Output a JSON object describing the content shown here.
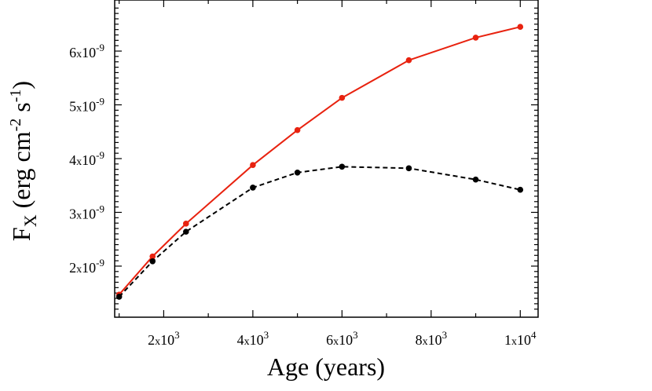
{
  "chart_data": {
    "type": "line",
    "xlabel": "Age (years)",
    "ylabel": {
      "main": "F",
      "sub": "X",
      "open": "(erg cm",
      "exp1": "-2",
      "mid": " s",
      "exp2": "-1",
      "close": ")"
    },
    "xlim": [
      900,
      10400
    ],
    "ylim": [
      1.05e-09,
      6.95e-09
    ],
    "x_ticks": [
      {
        "value": 2000,
        "mant": "2",
        "sep": "x",
        "base": "10",
        "exp": "3"
      },
      {
        "value": 4000,
        "mant": "4",
        "sep": "x",
        "base": "10",
        "exp": "3"
      },
      {
        "value": 6000,
        "mant": "6",
        "sep": "x",
        "base": "10",
        "exp": "3"
      },
      {
        "value": 8000,
        "mant": "8",
        "sep": "x",
        "base": "10",
        "exp": "3"
      },
      {
        "value": 10000,
        "mant": "1",
        "sep": "x",
        "base": "10",
        "exp": "4"
      }
    ],
    "y_ticks": [
      {
        "value": 2e-09,
        "mant": "2",
        "sep": "x",
        "base": "10",
        "exp": "-9"
      },
      {
        "value": 3e-09,
        "mant": "3",
        "sep": "x",
        "base": "10",
        "exp": "-9"
      },
      {
        "value": 4e-09,
        "mant": "4",
        "sep": "x",
        "base": "10",
        "exp": "-9"
      },
      {
        "value": 5e-09,
        "mant": "5",
        "sep": "x",
        "base": "10",
        "exp": "-9"
      },
      {
        "value": 6e-09,
        "mant": "6",
        "sep": "x",
        "base": "10",
        "exp": "-9"
      }
    ],
    "series": [
      {
        "name": "red-solid",
        "color": "#e8220f",
        "dash": "solid",
        "x": [
          1000,
          1750,
          2500,
          4000,
          5000,
          6000,
          7500,
          9000,
          10000
        ],
        "y": [
          1.47e-09,
          2.18e-09,
          2.79e-09,
          3.88e-09,
          4.53e-09,
          5.13e-09,
          5.83e-09,
          6.25e-09,
          6.45e-09
        ]
      },
      {
        "name": "black-dashed",
        "color": "#000000",
        "dash": "dashed",
        "x": [
          1000,
          1750,
          2500,
          4000,
          5000,
          6000,
          7500,
          9000,
          10000
        ],
        "y": [
          1.43e-09,
          2.09e-09,
          2.64e-09,
          3.46e-09,
          3.74e-09,
          3.85e-09,
          3.82e-09,
          3.61e-09,
          3.42e-09
        ]
      }
    ]
  }
}
